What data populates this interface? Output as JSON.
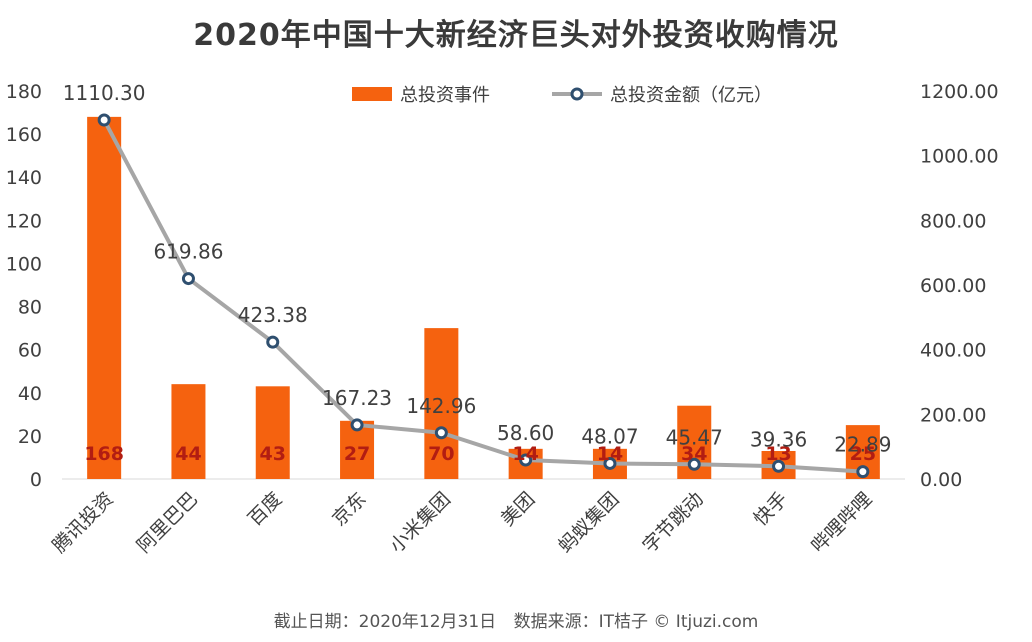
{
  "chart_data": {
    "type": "bar",
    "title": "2020年中国十大新经济巨头对外投资收购情况",
    "categories": [
      "腾讯投资",
      "阿里巴巴",
      "百度",
      "京东",
      "小米集团",
      "美团",
      "蚂蚁集团",
      "字节跳动",
      "快手",
      "哔哩哔哩"
    ],
    "series": [
      {
        "name": "总投资事件",
        "type": "bar",
        "axis": "left",
        "values": [
          168,
          44,
          43,
          27,
          70,
          14,
          14,
          34,
          13,
          25
        ],
        "value_labels": [
          "168",
          "44",
          "43",
          "27",
          "70",
          "14",
          "14",
          "34",
          "13",
          "25"
        ]
      },
      {
        "name": "总投资金额（亿元）",
        "type": "line",
        "axis": "right",
        "values": [
          1110.3,
          619.86,
          423.38,
          167.23,
          142.96,
          58.6,
          48.07,
          45.47,
          39.36,
          22.89
        ],
        "value_labels": [
          "1110.30",
          "619.86",
          "423.38",
          "167.23",
          "142.96",
          "58.60",
          "48.07",
          "45.47",
          "39.36",
          "22.89"
        ]
      }
    ],
    "ylim_left": [
      0,
      180
    ],
    "yticks_left": [
      "0",
      "20",
      "40",
      "60",
      "80",
      "100",
      "120",
      "140",
      "160",
      "180"
    ],
    "ylim_right": [
      0,
      1200
    ],
    "yticks_right": [
      "0.00",
      "200.00",
      "400.00",
      "600.00",
      "800.00",
      "1000.00",
      "1200.00"
    ],
    "legend_position": "top",
    "grid": false
  },
  "colors": {
    "bar": "#f5620f",
    "line": "#a6a6a6",
    "marker_border": "#2f4f6f",
    "marker_fill": "#ffffff",
    "bar_label": "#b21d12",
    "text": "#404040"
  },
  "footer": {
    "date": "截止日期：2020年12月31日",
    "source": "数据来源：IT桔子 © Itjuzi.com"
  }
}
